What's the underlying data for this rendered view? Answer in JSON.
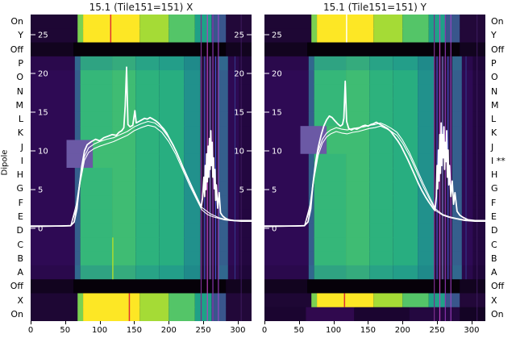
{
  "labels": {
    "y_axis": "Dipole"
  },
  "palette_patterns": {
    "hot": [
      [
        0,
        68,
        "#1e0734"
      ],
      [
        68,
        76,
        "#7ad151"
      ],
      [
        76,
        158,
        "#fde725"
      ],
      [
        158,
        200,
        "#a5db36"
      ],
      [
        200,
        238,
        "#54c568"
      ],
      [
        238,
        262,
        "#1fa187"
      ],
      [
        262,
        283,
        "#39568c"
      ],
      [
        283,
        320,
        "#220839"
      ]
    ],
    "offrow": [
      [
        0,
        62,
        "#12041f"
      ],
      [
        62,
        283,
        "#060109"
      ],
      [
        283,
        320,
        "#12041f"
      ]
    ],
    "mid": [
      [
        0,
        64,
        "#2e0a54"
      ],
      [
        64,
        72,
        "#355f8d"
      ],
      [
        72,
        118,
        "#35b779"
      ],
      [
        118,
        152,
        "#3fbc73"
      ],
      [
        152,
        186,
        "#2db27d"
      ],
      [
        186,
        222,
        "#28ae80"
      ],
      [
        222,
        246,
        "#21918c"
      ],
      [
        246,
        272,
        "#2a1440"
      ],
      [
        272,
        286,
        "#355f8d"
      ],
      [
        286,
        302,
        "#2e0a54"
      ],
      [
        302,
        320,
        "#230740"
      ]
    ],
    "mid_dark": [
      [
        0,
        64,
        "#2a094c"
      ],
      [
        64,
        72,
        "#31688e"
      ],
      [
        72,
        118,
        "#2fa382"
      ],
      [
        118,
        152,
        "#35ab7d"
      ],
      [
        152,
        186,
        "#28a386"
      ],
      [
        186,
        222,
        "#239e89"
      ],
      [
        222,
        246,
        "#1f8a8a"
      ],
      [
        246,
        272,
        "#261238"
      ],
      [
        272,
        286,
        "#31688e"
      ],
      [
        286,
        302,
        "#2a094c"
      ],
      [
        302,
        320,
        "#1f063a"
      ]
    ],
    "mid_violet": [
      [
        0,
        52,
        "#2e0a54"
      ],
      [
        52,
        90,
        "#6b59a5"
      ],
      [
        90,
        152,
        "#3fbc73"
      ],
      [
        152,
        186,
        "#2db27d"
      ],
      [
        186,
        222,
        "#28ae80"
      ],
      [
        222,
        246,
        "#21918c"
      ],
      [
        246,
        272,
        "#2a1440"
      ],
      [
        272,
        286,
        "#355f8d"
      ],
      [
        286,
        302,
        "#2e0a54"
      ],
      [
        302,
        320,
        "#230740"
      ]
    ],
    "bottom_dark": [
      [
        0,
        60,
        "#1b0530"
      ],
      [
        60,
        130,
        "#30094e"
      ],
      [
        130,
        210,
        "#1b0530"
      ],
      [
        210,
        283,
        "#240840"
      ],
      [
        283,
        320,
        "#140425"
      ]
    ]
  },
  "chart_data": [
    {
      "type": "heatmap",
      "title": "15.1 (Tile151=151) X",
      "x_range": [
        0,
        320
      ],
      "x_ticks": [
        0,
        50,
        100,
        150,
        200,
        250,
        300
      ],
      "value_ticks": [
        25,
        20,
        15,
        10,
        5,
        0
      ],
      "right_value_ticks": [
        25,
        20,
        15,
        10,
        5
      ],
      "row_labels": [
        "On",
        "Y",
        "Off",
        "P",
        "O",
        "N",
        "M",
        "L",
        "K",
        "J",
        "I",
        "H",
        "G",
        "F",
        "E",
        "D",
        "C",
        "B",
        "A",
        "Off",
        "X",
        "On"
      ],
      "rows": [
        "hot",
        "hot",
        "offrow",
        "mid_dark",
        "mid",
        "mid",
        "mid",
        "mid",
        "mid",
        "mid_violet",
        "mid_violet",
        "mid",
        "mid",
        "mid",
        "mid",
        "mid",
        "mid",
        "mid",
        "mid_dark",
        "offrow",
        "hot",
        "hot"
      ],
      "vlines": [
        {
          "x": 116,
          "r0": 0,
          "r1": 1,
          "color": "#e03131",
          "w": 1.5
        },
        {
          "x": 119,
          "r0": 16,
          "r1": 18,
          "color": "#aadc32",
          "w": 1.5
        },
        {
          "x": 143,
          "r0": 20,
          "r1": 21,
          "color": "#e03131",
          "w": 1.5
        },
        {
          "x": 247,
          "r0": 0,
          "r1": 21,
          "color": "#7b2d8b",
          "w": 1.2
        },
        {
          "x": 252,
          "r0": 3,
          "r1": 18,
          "color": "#4149c4",
          "w": 1.2
        },
        {
          "x": 256,
          "r0": 0,
          "r1": 21,
          "color": "#b93fb9",
          "w": 1.2
        },
        {
          "x": 260,
          "r0": 3,
          "r1": 18,
          "color": "#8a8adf",
          "w": 1
        },
        {
          "x": 264,
          "r0": 0,
          "r1": 21,
          "color": "#8833aa",
          "w": 1.2
        },
        {
          "x": 268,
          "r0": 3,
          "r1": 18,
          "color": "#4455dd",
          "w": 1
        },
        {
          "x": 272,
          "r0": 0,
          "r1": 21,
          "color": "#aa44cc",
          "w": 1
        },
        {
          "x": 296,
          "r0": 3,
          "r1": 18,
          "color": "#333a8c",
          "w": 1
        },
        {
          "x": 305,
          "r0": 0,
          "r1": 21,
          "color": "#3d1a5e",
          "w": 1
        }
      ],
      "lines": [
        {
          "w": 1.1,
          "x": [
            0,
            58,
            66,
            72,
            78,
            84,
            92,
            100,
            110,
            120,
            130,
            140,
            150,
            160,
            170,
            180,
            190,
            200,
            210,
            220,
            230,
            240,
            248,
            256,
            264,
            272,
            280,
            290,
            305,
            320
          ],
          "v": [
            0.2,
            0.3,
            2.5,
            6,
            8.8,
            9.8,
            10.3,
            10.6,
            10.9,
            11.2,
            11.6,
            12,
            12.6,
            13,
            13.3,
            13.1,
            12.4,
            11.2,
            9.6,
            7.6,
            5.6,
            3.8,
            2.4,
            1.8,
            1.5,
            1.3,
            1.1,
            1,
            0.9,
            0.9
          ]
        },
        {
          "w": 1.1,
          "x": [
            0,
            58,
            66,
            72,
            78,
            84,
            92,
            100,
            110,
            120,
            130,
            140,
            150,
            160,
            170,
            180,
            190,
            200,
            210,
            220,
            230,
            240,
            248,
            260,
            272,
            285,
            300,
            320
          ],
          "v": [
            0.25,
            0.35,
            3,
            6.5,
            9.3,
            10.4,
            10.9,
            11.2,
            11.5,
            11.7,
            12.1,
            12.5,
            13.1,
            13.5,
            13.8,
            13.6,
            12.9,
            11.7,
            10.1,
            8.1,
            6.1,
            4.2,
            2.7,
            1.9,
            1.4,
            1.1,
            1,
            0.95
          ]
        },
        {
          "w": 1.8,
          "x": [
            0,
            45,
            58,
            63,
            67,
            70,
            74,
            78,
            82,
            88,
            94,
            100,
            106,
            112,
            118,
            124,
            128,
            132,
            135,
            137,
            139,
            141,
            144,
            148,
            151,
            153,
            157,
            161,
            165,
            169,
            173,
            177,
            181,
            185,
            189,
            193,
            197,
            201,
            206,
            211,
            216,
            221,
            226,
            231,
            236,
            240,
            244,
            247,
            249,
            251,
            252,
            253,
            254,
            255,
            256,
            257,
            258,
            259,
            260,
            261,
            262,
            263,
            264,
            265,
            266,
            267,
            268,
            269,
            271,
            273,
            275,
            278,
            282,
            287,
            295,
            305,
            320
          ],
          "v": [
            0.3,
            0.3,
            0.35,
            0.8,
            2.5,
            5,
            8,
            10,
            10.8,
            11.2,
            11.5,
            11.3,
            11.7,
            11.9,
            12.1,
            12.0,
            12.4,
            12.6,
            13.0,
            15.8,
            20.8,
            13.4,
            13.1,
            13.3,
            15.2,
            13.6,
            13.8,
            14.0,
            14.2,
            14.1,
            14.3,
            14.1,
            13.9,
            13.6,
            13.2,
            12.8,
            12.3,
            11.6,
            10.8,
            9.9,
            8.9,
            7.8,
            6.8,
            5.8,
            4.8,
            4.0,
            3.3,
            2.7,
            3.9,
            6.6,
            4.1,
            8.1,
            5.0,
            9.6,
            6.0,
            10.6,
            6.6,
            11.6,
            7.6,
            12.6,
            8.1,
            11.1,
            6.6,
            9.1,
            5.1,
            7.6,
            3.6,
            5.6,
            2.6,
            4.6,
            2.0,
            1.6,
            1.3,
            1.1,
            1.0,
            1.0,
            1.0
          ]
        }
      ]
    },
    {
      "type": "heatmap",
      "title": "15.1 (Tile151=151) Y",
      "x_range": [
        0,
        320
      ],
      "x_ticks": [
        0,
        50,
        100,
        150,
        200,
        250,
        300
      ],
      "value_ticks": [
        25,
        20,
        15,
        10,
        5,
        0
      ],
      "row_labels": [
        "On",
        "Y",
        "Off",
        "P",
        "O",
        "N",
        "M",
        "L",
        "K",
        "J",
        "I",
        "H",
        "G",
        "F",
        "E",
        "D",
        "C",
        "B",
        "A",
        "Off",
        "X",
        "On"
      ],
      "row_labels_right": [
        "On",
        "Y",
        "Off",
        "P",
        "O",
        "N",
        "M",
        "L",
        "K",
        "J",
        "I **",
        "H",
        "G",
        "F",
        "E",
        "D",
        "C",
        "B",
        "A",
        "Off",
        "X",
        "On"
      ],
      "rows": [
        "hot",
        "hot",
        "offrow",
        "mid_dark",
        "mid",
        "mid",
        "mid",
        "mid",
        "mid_violet",
        "mid_violet",
        "mid",
        "mid",
        "mid",
        "mid",
        "mid",
        "mid",
        "mid",
        "mid",
        "mid_dark",
        "offrow",
        "hot",
        "bottom_dark"
      ],
      "vlines": [
        {
          "x": 119,
          "r0": 0,
          "r1": 1,
          "color": "#ffffff",
          "w": 1.5
        },
        {
          "x": 116,
          "r0": 20,
          "r1": 20,
          "color": "#e03131",
          "w": 1.5
        },
        {
          "x": 246,
          "r0": 0,
          "r1": 21,
          "color": "#7b2d8b",
          "w": 1.2
        },
        {
          "x": 250,
          "r0": 3,
          "r1": 18,
          "color": "#4149c4",
          "w": 1.2
        },
        {
          "x": 254,
          "r0": 0,
          "r1": 21,
          "color": "#b93fb9",
          "w": 1.2
        },
        {
          "x": 258,
          "r0": 3,
          "r1": 18,
          "color": "#8a8adf",
          "w": 1
        },
        {
          "x": 262,
          "r0": 0,
          "r1": 21,
          "color": "#8833aa",
          "w": 1.2
        },
        {
          "x": 266,
          "r0": 3,
          "r1": 18,
          "color": "#4455dd",
          "w": 1
        },
        {
          "x": 270,
          "r0": 0,
          "r1": 21,
          "color": "#aa44cc",
          "w": 1
        },
        {
          "x": 292,
          "r0": 3,
          "r1": 18,
          "color": "#333a8c",
          "w": 1
        },
        {
          "x": 308,
          "r0": 0,
          "r1": 21,
          "color": "#3d1a5e",
          "w": 1
        }
      ],
      "lines": [
        {
          "w": 1.1,
          "x": [
            0,
            58,
            66,
            72,
            78,
            84,
            90,
            96,
            104,
            112,
            120,
            128,
            136,
            144,
            152,
            160,
            168,
            176,
            184,
            192,
            200,
            210,
            220,
            230,
            240,
            248,
            258,
            268,
            278,
            290,
            305,
            320
          ],
          "v": [
            0.2,
            0.3,
            2.5,
            6.5,
            9.5,
            11,
            11.8,
            12.2,
            12.5,
            12.3,
            12.2,
            12.4,
            12.5,
            12.7,
            12.9,
            13,
            13.2,
            12.9,
            12.5,
            12,
            11,
            9.4,
            7.4,
            5.4,
            3.6,
            2.3,
            1.7,
            1.4,
            1.2,
            1,
            0.9,
            0.9
          ]
        },
        {
          "w": 1.1,
          "x": [
            0,
            58,
            66,
            72,
            78,
            84,
            90,
            96,
            104,
            112,
            120,
            128,
            136,
            144,
            152,
            160,
            168,
            176,
            184,
            192,
            200,
            210,
            220,
            230,
            240,
            248,
            258,
            268,
            278,
            290,
            305,
            320
          ],
          "v": [
            0.25,
            0.35,
            3,
            7,
            10,
            11.5,
            12.3,
            12.7,
            13,
            12.8,
            12.7,
            12.9,
            13,
            13.1,
            13.3,
            13.4,
            13.6,
            13.3,
            12.9,
            12.4,
            11.4,
            9.8,
            7.8,
            5.8,
            3.9,
            2.5,
            1.8,
            1.5,
            1.3,
            1.1,
            1,
            0.95
          ]
        },
        {
          "w": 1.8,
          "x": [
            0,
            45,
            58,
            63,
            67,
            70,
            74,
            78,
            82,
            86,
            90,
            94,
            98,
            102,
            106,
            110,
            113,
            115,
            117,
            119,
            122,
            126,
            130,
            134,
            138,
            142,
            146,
            150,
            154,
            158,
            162,
            166,
            170,
            174,
            178,
            183,
            188,
            193,
            198,
            203,
            208,
            213,
            218,
            223,
            228,
            233,
            238,
            242,
            245,
            247,
            249,
            250,
            251,
            252,
            253,
            254,
            255,
            256,
            257,
            258,
            259,
            260,
            261,
            262,
            263,
            264,
            265,
            266,
            267,
            268,
            270,
            272,
            274,
            276,
            279,
            283,
            288,
            295,
            305,
            320
          ],
          "v": [
            0.3,
            0.3,
            0.35,
            0.8,
            2.5,
            5.5,
            8.5,
            10.5,
            12.0,
            13.2,
            14.0,
            14.5,
            14.3,
            13.9,
            13.5,
            13.2,
            13.4,
            14.2,
            19.0,
            13.8,
            12.9,
            12.7,
            12.9,
            12.8,
            13.0,
            13.2,
            13.3,
            13.2,
            13.4,
            13.5,
            13.7,
            13.5,
            13.3,
            13.1,
            12.9,
            12.5,
            11.9,
            11.3,
            10.6,
            9.7,
            8.8,
            7.8,
            6.8,
            5.8,
            4.9,
            4.1,
            3.4,
            2.9,
            2.5,
            2.3,
            4.1,
            8.1,
            5.1,
            10.1,
            6.1,
            12.1,
            7.1,
            13.6,
            8.1,
            12.1,
            9.1,
            13.1,
            7.6,
            11.1,
            8.6,
            12.6,
            6.6,
            10.1,
            5.6,
            8.1,
            4.1,
            6.1,
            3.1,
            4.6,
            2.2,
            1.7,
            1.4,
            1.1,
            1.0,
            1.0
          ]
        }
      ]
    }
  ]
}
